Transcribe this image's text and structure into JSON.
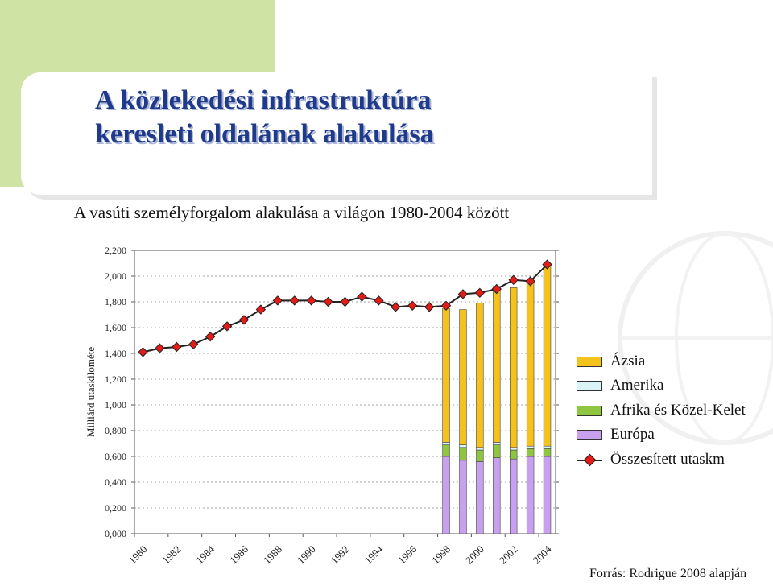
{
  "slide": {
    "title_line1": "A közlekedési infrastruktúra",
    "title_line2": "keresleti oldalának alakulása",
    "subtitle": "A vasúti személyforgalom alakulása a világon 1980-2004 között",
    "source": "Forrás: Rodrigue 2008 alapján"
  },
  "colors": {
    "asia": "#f5c21b",
    "america": "#d9f5f7",
    "africa_middle_east": "#8ec63f",
    "europe": "#c9a0f0",
    "total_line": "#222222",
    "total_marker": "#e41b17",
    "title": "#1f3a8a",
    "accent_green": "#cfe3a4"
  },
  "chart_data": {
    "type": "bar",
    "ylabel": "Milliárd utaskilométe",
    "ylim": [
      0,
      2.2
    ],
    "yticks": [
      "0,000",
      "0,200",
      "0,400",
      "0,600",
      "0,800",
      "1,000",
      "1,200",
      "1,400",
      "1,600",
      "1,800",
      "2,000",
      "2,200"
    ],
    "categories": [
      "1980",
      "1981",
      "1982",
      "1983",
      "1984",
      "1985",
      "1986",
      "1987",
      "1988",
      "1989",
      "1990",
      "1991",
      "1992",
      "1993",
      "1994",
      "1995",
      "1996",
      "1997",
      "1998",
      "1999",
      "2000",
      "2001",
      "2002",
      "2003",
      "2004"
    ],
    "xtick_labels": [
      "1980",
      "1982",
      "1984",
      "1986",
      "1988",
      "1990",
      "1992",
      "1994",
      "1996",
      "1998",
      "2000",
      "2002",
      "2004"
    ],
    "series": [
      {
        "name": "Európa",
        "key": "europe",
        "values": [
          null,
          null,
          null,
          null,
          null,
          null,
          null,
          null,
          null,
          null,
          null,
          null,
          null,
          null,
          null,
          null,
          null,
          null,
          0.6,
          0.57,
          0.56,
          0.59,
          0.58,
          0.6,
          0.6
        ]
      },
      {
        "name": "Afrika és Közel-Kelet",
        "key": "africa_middle_east",
        "values": [
          null,
          null,
          null,
          null,
          null,
          null,
          null,
          null,
          null,
          null,
          null,
          null,
          null,
          null,
          null,
          null,
          null,
          null,
          0.09,
          0.1,
          0.09,
          0.1,
          0.07,
          0.06,
          0.06
        ]
      },
      {
        "name": "Amerika",
        "key": "america",
        "values": [
          null,
          null,
          null,
          null,
          null,
          null,
          null,
          null,
          null,
          null,
          null,
          null,
          null,
          null,
          null,
          null,
          null,
          null,
          0.02,
          0.02,
          0.02,
          0.02,
          0.02,
          0.02,
          0.02
        ]
      },
      {
        "name": "Ázsia",
        "key": "asia",
        "values": [
          null,
          null,
          null,
          null,
          null,
          null,
          null,
          null,
          null,
          null,
          null,
          null,
          null,
          null,
          null,
          null,
          null,
          null,
          1.04,
          1.05,
          1.12,
          1.21,
          1.24,
          1.29,
          1.42
        ]
      }
    ],
    "line_series": {
      "name": "Összesített utaskm",
      "values": [
        1.41,
        1.44,
        1.45,
        1.47,
        1.53,
        1.61,
        1.66,
        1.74,
        1.81,
        1.81,
        1.81,
        1.8,
        1.8,
        1.84,
        1.81,
        1.76,
        1.77,
        1.76,
        1.77,
        1.86,
        1.87,
        1.9,
        1.97,
        1.96,
        2.09
      ]
    },
    "legend": {
      "position": "right",
      "items": [
        {
          "label": "Ázsia",
          "key": "asia",
          "kind": "bar"
        },
        {
          "label": "Amerika",
          "key": "america",
          "kind": "bar"
        },
        {
          "label": "Afrika és Közel-Kelet",
          "key": "africa_middle_east",
          "kind": "bar"
        },
        {
          "label": "Európa",
          "key": "europe",
          "kind": "bar"
        },
        {
          "label": "Összesített utaskm",
          "key": "total",
          "kind": "line"
        }
      ]
    },
    "grid": true
  }
}
